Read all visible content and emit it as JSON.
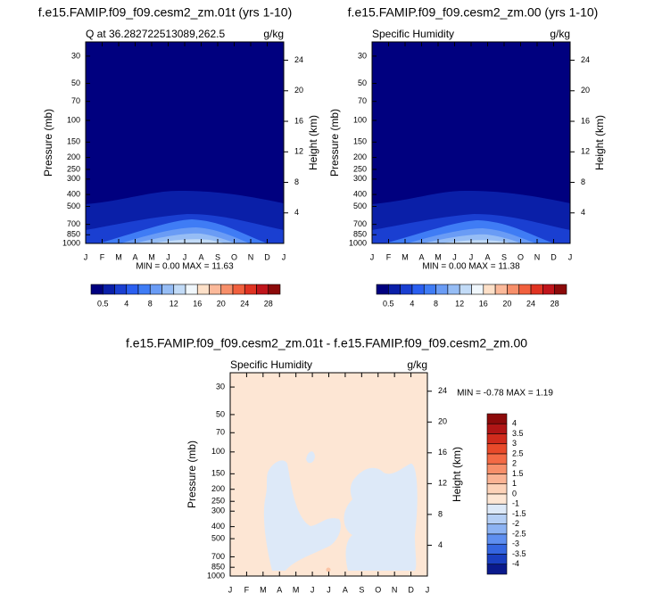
{
  "chart_data": [
    {
      "type": "contour",
      "title": "f.e15.FAMIP.f09_f09.cesm2_zm.01t (yrs 1-10)",
      "left_string": "Q at 36.282722513089,262.5",
      "right_string": "g/kg",
      "ylabel": "Pressure (mb)",
      "y2label": "Height (km)",
      "categories": [
        "J",
        "F",
        "M",
        "A",
        "M",
        "J",
        "J",
        "A",
        "S",
        "O",
        "N",
        "D",
        "J"
      ],
      "ylog": true,
      "ylim": [
        1000,
        23
      ],
      "yticks": [
        30,
        50,
        70,
        100,
        150,
        200,
        250,
        300,
        400,
        500,
        700,
        850,
        1000
      ],
      "y2lim": [
        0,
        26.4
      ],
      "y2ticks": [
        4,
        8,
        12,
        16,
        20,
        24
      ],
      "annotation": "MIN =   0.00 MAX = 11.63",
      "colorbar": {
        "orientation": "horizontal",
        "label_every": 2,
        "labels": [
          0.5,
          4,
          8,
          12,
          16,
          20,
          24,
          28
        ],
        "colors": [
          "#00007f",
          "#0a1fa8",
          "#1a3fd1",
          "#2a5ff0",
          "#3f7cf5",
          "#6a9cf5",
          "#96bdf5",
          "#c2dbf7",
          "#f0f7fc",
          "#fde0c8",
          "#fbb99a",
          "#f78f6a",
          "#f1603e",
          "#e03322",
          "#c0151b",
          "#8c0a0a"
        ]
      }
    },
    {
      "type": "contour",
      "title": "f.e15.FAMIP.f09_f09.cesm2_zm.00 (yrs 1-10)",
      "left_string": "Specific Humidity",
      "right_string": "g/kg",
      "ylabel": "Pressure (mb)",
      "y2label": "Height (km)",
      "categories": [
        "J",
        "F",
        "M",
        "A",
        "M",
        "J",
        "J",
        "A",
        "S",
        "O",
        "N",
        "D",
        "J"
      ],
      "ylog": true,
      "ylim": [
        1000,
        23
      ],
      "yticks": [
        30,
        50,
        70,
        100,
        150,
        200,
        250,
        300,
        400,
        500,
        700,
        850,
        1000
      ],
      "y2lim": [
        0,
        26.4
      ],
      "y2ticks": [
        4,
        8,
        12,
        16,
        20,
        24
      ],
      "annotation": "MIN =   0.00 MAX = 11.38",
      "colorbar": {
        "orientation": "horizontal",
        "label_every": 2,
        "labels": [
          0.5,
          4,
          8,
          12,
          16,
          20,
          24,
          28
        ],
        "colors": [
          "#00007f",
          "#0a1fa8",
          "#1a3fd1",
          "#2a5ff0",
          "#3f7cf5",
          "#6a9cf5",
          "#96bdf5",
          "#c2dbf7",
          "#f0f7fc",
          "#fde0c8",
          "#fbb99a",
          "#f78f6a",
          "#f1603e",
          "#e03322",
          "#c0151b",
          "#8c0a0a"
        ]
      }
    },
    {
      "type": "contour",
      "title": "f.e15.FAMIP.f09_f09.cesm2_zm.01t - f.e15.FAMIP.f09_f09.cesm2_zm.00",
      "left_string": "Specific Humidity",
      "right_string": "g/kg",
      "ylabel": "Pressure (mb)",
      "y2label": "Height (km)",
      "categories": [
        "J",
        "F",
        "M",
        "A",
        "M",
        "J",
        "J",
        "A",
        "S",
        "O",
        "N",
        "D",
        "J"
      ],
      "ylog": true,
      "ylim": [
        1000,
        23
      ],
      "yticks": [
        30,
        50,
        70,
        100,
        150,
        200,
        250,
        300,
        400,
        500,
        700,
        850,
        1000
      ],
      "y2lim": [
        0,
        26.4
      ],
      "y2ticks": [
        4,
        8,
        12,
        16,
        20,
        24
      ],
      "annotation": "MIN = -0.78 MAX =  1.19",
      "colorbar": {
        "orientation": "vertical",
        "label_every": 1,
        "labels": [
          4,
          3.5,
          3,
          2.5,
          2,
          1.5,
          1,
          0,
          -1,
          -1.5,
          -2,
          -2.5,
          -3,
          -3.5,
          -4
        ],
        "colors": [
          "#8c0a0a",
          "#b01515",
          "#d02b1c",
          "#e84a2a",
          "#f36a45",
          "#f78f6a",
          "#fab394",
          "#fcd2b8",
          "#fde6d4",
          "#dde9f8",
          "#b5cff5",
          "#8db3f3",
          "#5f8ff0",
          "#3566e0",
          "#1a3fc0",
          "#0a1a8c"
        ]
      }
    }
  ]
}
